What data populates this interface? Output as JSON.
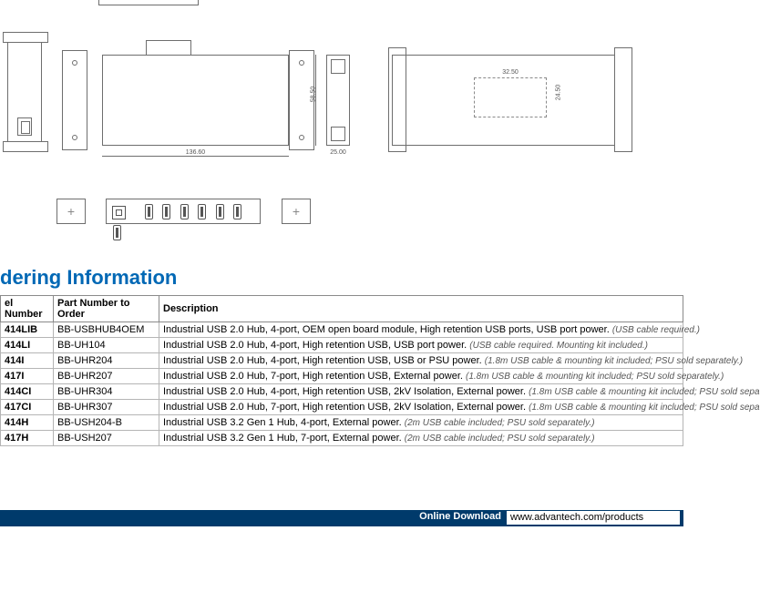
{
  "diagram": {
    "dim_height_mm": "58.50",
    "dim_width_mm": "136.60",
    "dim_depth_mm": "25.00",
    "mount_w_mm": "32.50",
    "mount_h_mm": "24.50"
  },
  "section_title": "dering Information",
  "table": {
    "headers": {
      "c1": "el Number",
      "c2": "Part Number to Order",
      "c3": "Description"
    },
    "rows": [
      {
        "model": "414LIB",
        "pn": "BB-USBHUB4OEM",
        "desc": "Industrial USB 2.0 Hub, 4-port, OEM open board module, High retention USB ports, USB port power.",
        "note": "(USB cable required.)"
      },
      {
        "model": "414LI",
        "pn": "BB-UH104",
        "desc": "Industrial USB 2.0 Hub, 4-port, High retention USB, USB port power.",
        "note": "(USB cable required. Mounting kit included.)"
      },
      {
        "model": "414I",
        "pn": "BB-UHR204",
        "desc": "Industrial USB 2.0 Hub, 4-port, High retention USB, USB or PSU power.",
        "note": "(1.8m USB cable & mounting kit included; PSU sold separately.)"
      },
      {
        "model": "417I",
        "pn": "BB-UHR207",
        "desc": "Industrial USB 2.0 Hub, 7-port, High retention USB, External power.",
        "note": " (1.8m USB cable & mounting kit included; PSU sold separately.)"
      },
      {
        "model": "414CI",
        "pn": "BB-UHR304",
        "desc": "Industrial USB 2.0 Hub, 4-port, High retention USB, 2kV Isolation, External power.",
        "note": "(1.8m USB cable & mounting kit included; PSU sold sepa"
      },
      {
        "model": "417CI",
        "pn": "BB-UHR307",
        "desc": "Industrial USB 2.0 Hub, 7-port, High retention USB, 2kV Isolation, External power.",
        "note": "(1.8m USB cable & mounting kit included; PSU sold sepa"
      },
      {
        "model": "414H",
        "pn": "BB-USH204-B",
        "desc": "Industrial USB 3.2 Gen 1 Hub, 4-port, External power.",
        "note": "(2m USB cable included; PSU sold separately.)"
      },
      {
        "model": "417H",
        "pn": "BB-USH207",
        "desc": "Industrial USB 3.2 Gen 1 Hub, 7-port, External power.",
        "note": "(2m USB cable included; PSU sold separately.)"
      }
    ]
  },
  "footer": {
    "label": "Online Download",
    "url": "www.advantech.com/products"
  }
}
